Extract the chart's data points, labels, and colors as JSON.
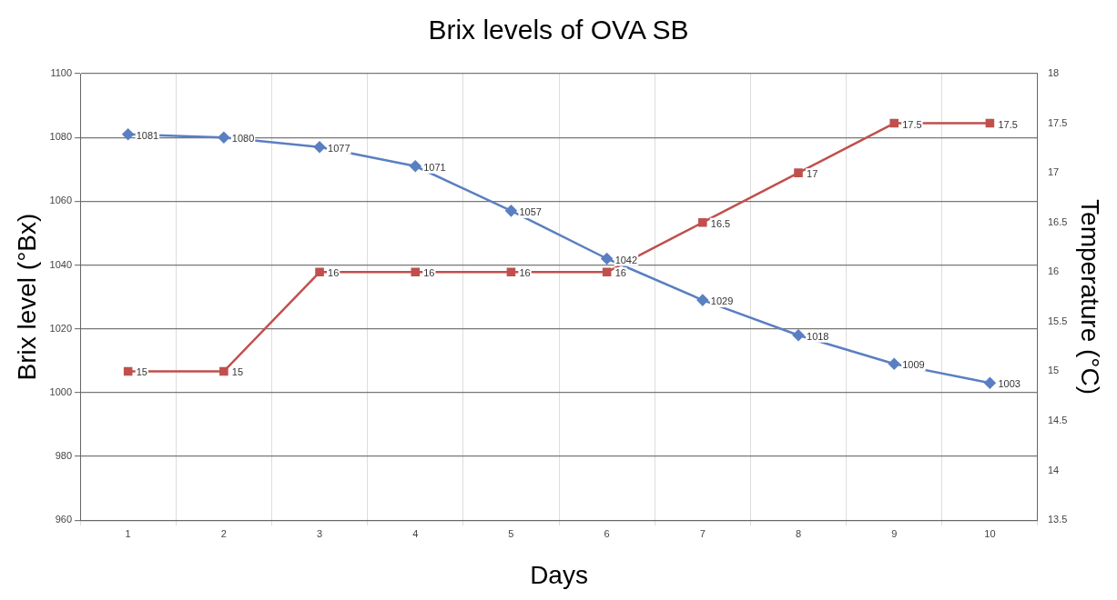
{
  "chart_data": {
    "type": "line",
    "title": "Brix levels of OVA SB",
    "xlabel": "Days",
    "ylabel": "Brix level (°Bx)",
    "y2label": "Temperature (°C)",
    "categories": [
      "1",
      "2",
      "3",
      "4",
      "5",
      "6",
      "7",
      "8",
      "9",
      "10"
    ],
    "series": [
      {
        "color": "#5a7fc2",
        "marker": "diamond",
        "values": [
          1081,
          1080,
          1077,
          1071,
          1057,
          1042,
          1029,
          1018,
          1009,
          1003
        ]
      },
      {
        "color": "#c0504d",
        "marker": "square",
        "axis": "y2",
        "values": [
          15,
          15,
          16,
          16,
          16,
          16,
          16.5,
          17,
          17.5,
          17.5
        ]
      }
    ],
    "ylim": [
      960,
      1100
    ],
    "yticks": [
      960,
      980,
      1000,
      1020,
      1040,
      1060,
      1080,
      1100
    ],
    "y2lim": [
      13.5,
      18
    ],
    "y2ticks": [
      13.5,
      14,
      14.5,
      15,
      15.5,
      16,
      16.5,
      17,
      17.5,
      18
    ],
    "grid": true,
    "legend": false,
    "data_labels": true
  }
}
